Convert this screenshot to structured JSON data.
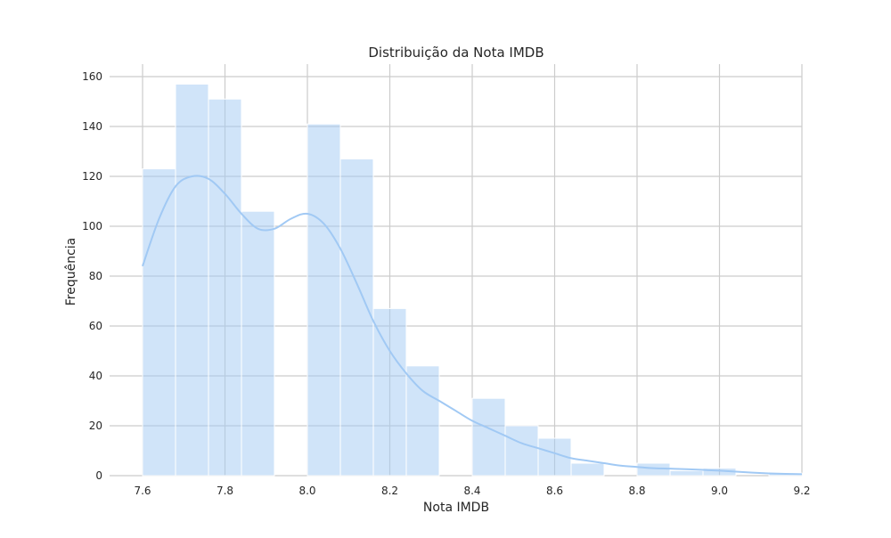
{
  "chart_data": {
    "type": "bar",
    "subtype": "histogram-with-kde",
    "title": "Distribuição da Nota IMDB",
    "xlabel": "Nota IMDB",
    "ylabel": "Frequência",
    "xlim": [
      7.52,
      9.2
    ],
    "ylim": [
      0,
      165
    ],
    "xticks": [
      "7.6",
      "7.8",
      "8.0",
      "8.2",
      "8.4",
      "8.6",
      "8.8",
      "9.0",
      "9.2"
    ],
    "yticks": [
      "0",
      "20",
      "40",
      "60",
      "80",
      "100",
      "120",
      "140",
      "160"
    ],
    "grid": true,
    "legend": "none",
    "colors": {
      "bar": "#a1c9f4",
      "kde": "#a1c9f4",
      "grid": "#cccccc"
    },
    "bins": [
      {
        "x0": 7.6,
        "x1": 7.68,
        "count": 123
      },
      {
        "x0": 7.68,
        "x1": 7.76,
        "count": 157
      },
      {
        "x0": 7.76,
        "x1": 7.84,
        "count": 151
      },
      {
        "x0": 7.84,
        "x1": 7.92,
        "count": 106
      },
      {
        "x0": 7.92,
        "x1": 8.0,
        "count": 0
      },
      {
        "x0": 8.0,
        "x1": 8.08,
        "count": 141
      },
      {
        "x0": 8.08,
        "x1": 8.16,
        "count": 127
      },
      {
        "x0": 8.16,
        "x1": 8.24,
        "count": 67
      },
      {
        "x0": 8.24,
        "x1": 8.32,
        "count": 44
      },
      {
        "x0": 8.32,
        "x1": 8.4,
        "count": 0
      },
      {
        "x0": 8.4,
        "x1": 8.48,
        "count": 31
      },
      {
        "x0": 8.48,
        "x1": 8.56,
        "count": 20
      },
      {
        "x0": 8.56,
        "x1": 8.64,
        "count": 15
      },
      {
        "x0": 8.64,
        "x1": 8.72,
        "count": 5
      },
      {
        "x0": 8.72,
        "x1": 8.8,
        "count": 0
      },
      {
        "x0": 8.8,
        "x1": 8.88,
        "count": 5
      },
      {
        "x0": 8.88,
        "x1": 8.96,
        "count": 2
      },
      {
        "x0": 8.96,
        "x1": 9.04,
        "count": 3
      },
      {
        "x0": 9.04,
        "x1": 9.12,
        "count": 0
      },
      {
        "x0": 9.12,
        "x1": 9.2,
        "count": 1
      }
    ],
    "kde": {
      "x": [
        7.6,
        7.64,
        7.68,
        7.72,
        7.76,
        7.8,
        7.84,
        7.88,
        7.92,
        7.96,
        8.0,
        8.04,
        8.08,
        8.12,
        8.16,
        8.2,
        8.24,
        8.28,
        8.32,
        8.36,
        8.4,
        8.44,
        8.48,
        8.52,
        8.56,
        8.6,
        8.64,
        8.68,
        8.72,
        8.76,
        8.8,
        8.84,
        8.88,
        8.92,
        8.96,
        9.0,
        9.04,
        9.08,
        9.12,
        9.16,
        9.2
      ],
      "y": [
        84,
        103,
        116,
        120,
        119,
        113,
        105,
        99,
        99,
        103,
        105,
        101,
        91,
        77,
        62,
        50,
        41,
        34,
        30,
        26,
        22,
        19,
        16,
        13,
        11,
        9,
        7,
        6,
        5,
        4,
        3.5,
        3,
        2.8,
        2.6,
        2.3,
        2,
        1.6,
        1.2,
        0.9,
        0.7,
        0.6
      ]
    }
  }
}
